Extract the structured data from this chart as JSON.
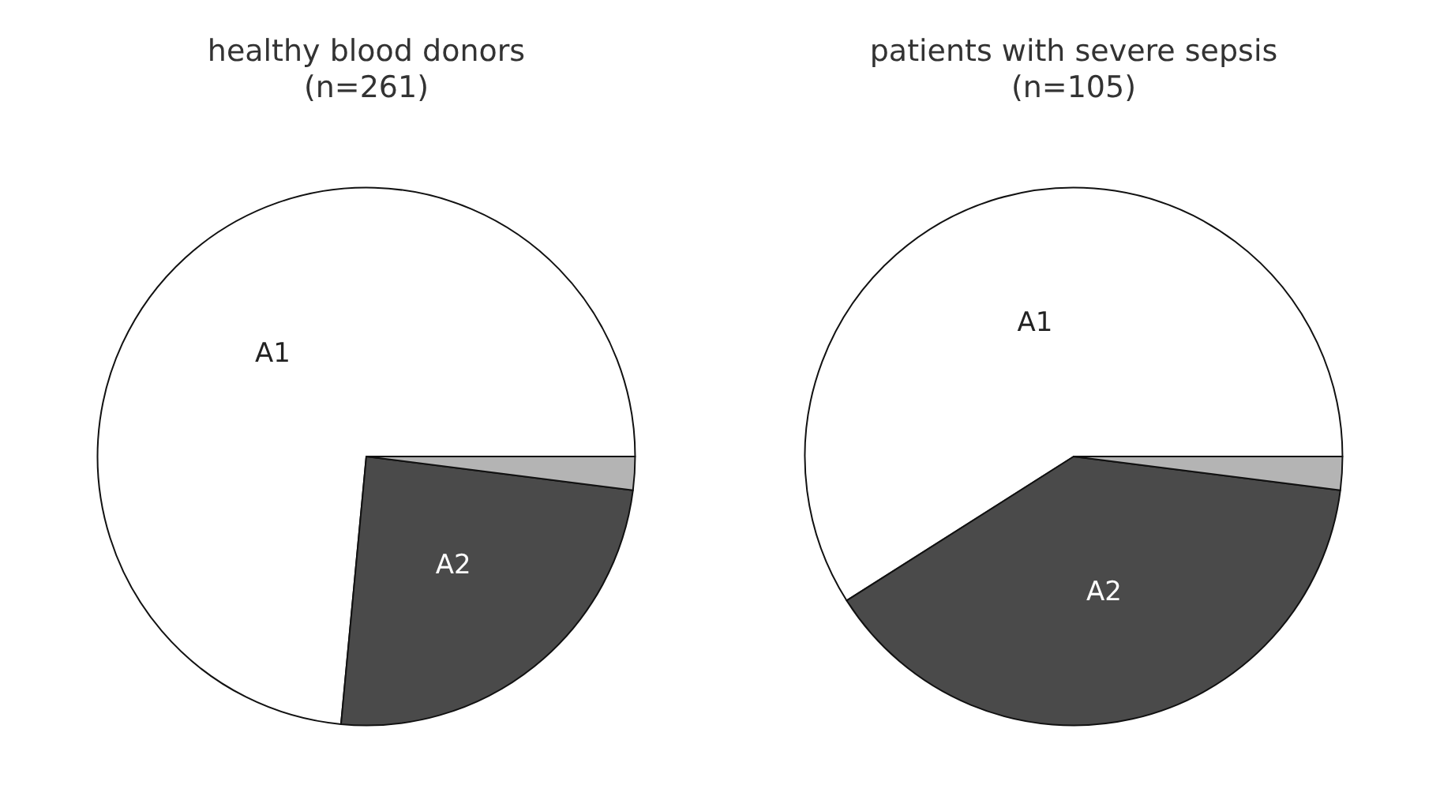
{
  "chart_data": [
    {
      "type": "pie",
      "title": "healthy blood donors",
      "subtitle": "(n=261)",
      "categories": [
        "A1",
        "A2",
        null
      ],
      "values": [
        73.5,
        24.5,
        2
      ],
      "colors": [
        "#ffffff",
        "#4a4a4a",
        "#b4b4b4"
      ]
    },
    {
      "type": "pie",
      "title": "patients with severe sepsis",
      "subtitle": "(n=105)",
      "categories": [
        "A1",
        "A2",
        null
      ],
      "values": [
        59,
        39,
        2
      ],
      "colors": [
        "#ffffff",
        "#4a4a4a",
        "#b4b4b4"
      ]
    }
  ]
}
